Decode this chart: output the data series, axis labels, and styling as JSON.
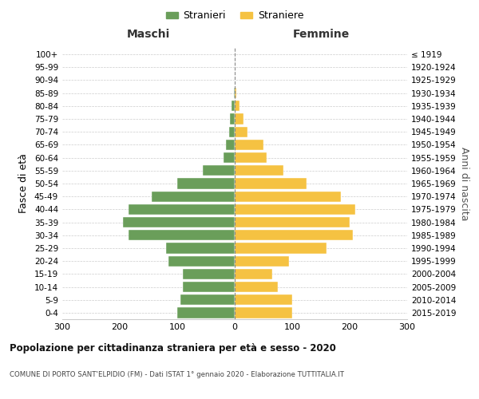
{
  "age_groups": [
    "0-4",
    "5-9",
    "10-14",
    "15-19",
    "20-24",
    "25-29",
    "30-34",
    "35-39",
    "40-44",
    "45-49",
    "50-54",
    "55-59",
    "60-64",
    "65-69",
    "70-74",
    "75-79",
    "80-84",
    "85-89",
    "90-94",
    "95-99",
    "100+"
  ],
  "birth_years": [
    "2015-2019",
    "2010-2014",
    "2005-2009",
    "2000-2004",
    "1995-1999",
    "1990-1994",
    "1985-1989",
    "1980-1984",
    "1975-1979",
    "1970-1974",
    "1965-1969",
    "1960-1964",
    "1955-1959",
    "1950-1954",
    "1945-1949",
    "1940-1944",
    "1935-1939",
    "1930-1934",
    "1925-1929",
    "1920-1924",
    "≤ 1919"
  ],
  "maschi": [
    100,
    95,
    90,
    90,
    115,
    120,
    185,
    195,
    185,
    145,
    100,
    55,
    20,
    15,
    10,
    8,
    5,
    2,
    0,
    0,
    0
  ],
  "femmine": [
    100,
    100,
    75,
    65,
    95,
    160,
    205,
    200,
    210,
    185,
    125,
    85,
    55,
    50,
    22,
    15,
    8,
    3,
    0,
    0,
    0
  ],
  "color_maschi": "#6a9e5a",
  "color_femmine": "#f5c242",
  "title": "Popolazione per cittadinanza straniera per età e sesso - 2020",
  "subtitle": "COMUNE DI PORTO SANT'ELPIDIO (FM) - Dati ISTAT 1° gennaio 2020 - Elaborazione TUTTITALIA.IT",
  "ylabel_left": "Fasce di età",
  "ylabel_right": "Anni di nascita",
  "label_maschi": "Maschi",
  "label_femmine": "Femmine",
  "xlim": 300,
  "background_color": "#ffffff",
  "grid_color": "#cccccc",
  "legend_stranieri": "Stranieri",
  "legend_straniere": "Straniere"
}
